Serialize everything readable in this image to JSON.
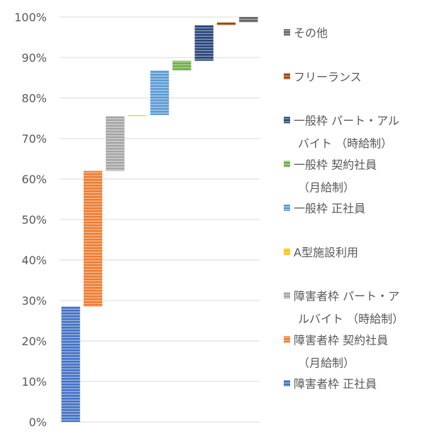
{
  "chart_data": {
    "type": "bar",
    "subtype": "waterfall-stacked",
    "title": "",
    "xlabel": "",
    "ylabel": "",
    "ylim": [
      0,
      100
    ],
    "y_ticks": [
      "0%",
      "10%",
      "20%",
      "30%",
      "40%",
      "50%",
      "60%",
      "70%",
      "80%",
      "90%",
      "100%"
    ],
    "grid": true,
    "legend_position": "right",
    "series": [
      {
        "name": "障害者枠 正社員",
        "lines": [
          "障害者枠 正社員"
        ],
        "start": 0,
        "end": 28.5,
        "color": "#4472C4"
      },
      {
        "name": "障害者枠 契約社員（月給制）",
        "lines": [
          "障害者枠 契約社員",
          "（月給制）"
        ],
        "start": 28.5,
        "end": 62.0,
        "color": "#ED7D31"
      },
      {
        "name": "障害者枠 パート・アルバイト （時給制）",
        "lines": [
          "障害者枠 パート・ア",
          "ルバイト （時給制）"
        ],
        "start": 62.0,
        "end": 75.5,
        "color": "#A5A5A5"
      },
      {
        "name": "A型施設利用",
        "lines": [
          "A型施設利用"
        ],
        "start": 75.5,
        "end": 75.8,
        "color": "#FFC000"
      },
      {
        "name": "一般枠 正社員",
        "lines": [
          "一般枠 正社員"
        ],
        "start": 75.8,
        "end": 86.8,
        "color": "#5B9BD5"
      },
      {
        "name": "一般枠 契約社員（月給制）",
        "lines": [
          "一般枠 契約社員",
          "（月給制）"
        ],
        "start": 86.8,
        "end": 89.2,
        "color": "#70AD47"
      },
      {
        "name": "一般枠 パート・アルバイト （時給制）",
        "lines": [
          "一般枠 パート・アル",
          "バイト （時給制）"
        ],
        "start": 89.2,
        "end": 98.0,
        "color": "#264478"
      },
      {
        "name": "フリーランス",
        "lines": [
          "フリーランス"
        ],
        "start": 98.0,
        "end": 98.7,
        "color": "#9E480E"
      },
      {
        "name": "その他",
        "lines": [
          "その他"
        ],
        "start": 98.7,
        "end": 100.0,
        "color": "#636363"
      }
    ]
  }
}
